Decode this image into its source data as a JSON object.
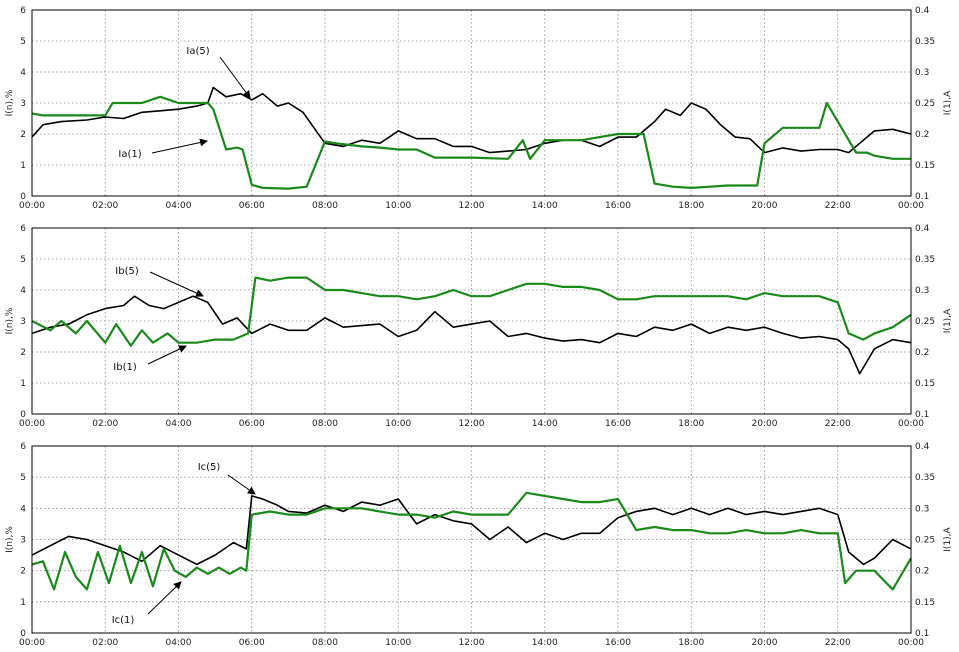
{
  "chart_data": [
    {
      "type": "line",
      "left_axis": {
        "label": "I(n),%",
        "ylim": [
          0,
          6
        ],
        "ticks": [
          "0",
          "1",
          "2",
          "3",
          "4",
          "5",
          "6"
        ]
      },
      "right_axis": {
        "label": "I(1),A",
        "ylim": [
          0.1,
          0.4
        ],
        "ticks": [
          "0.1",
          "0.15",
          "0.2",
          "0.25",
          "0.3",
          "0.35",
          "0.4"
        ]
      },
      "x_ticks": [
        "00:00",
        "02:00",
        "04:00",
        "06:00",
        "08:00",
        "10:00",
        "12:00",
        "14:00",
        "16:00",
        "18:00",
        "20:00",
        "22:00",
        "00:00"
      ],
      "grid": true,
      "annotations": [
        "Ia(5)",
        "Ia(1)"
      ],
      "series": [
        {
          "name": "Ia(5)",
          "color": "#000000",
          "axis": "left",
          "x": [
            0,
            0.3,
            0.8,
            1.5,
            2,
            2.5,
            3,
            3.5,
            4,
            4.5,
            4.8,
            4.95,
            5.3,
            5.7,
            6,
            6.3,
            6.7,
            7,
            7.4,
            7.7,
            8,
            8.5,
            9,
            9.5,
            10,
            10.5,
            11,
            11.5,
            12,
            12.5,
            13,
            13.5,
            14,
            14.5,
            15,
            15.5,
            16,
            16.5,
            17,
            17.3,
            17.7,
            18,
            18.4,
            18.8,
            19.2,
            19.6,
            20,
            20.5,
            21,
            21.5,
            22,
            22.3,
            22.6,
            23,
            23.5,
            24
          ],
          "y": [
            1.9,
            2.3,
            2.4,
            2.45,
            2.55,
            2.5,
            2.7,
            2.75,
            2.8,
            2.9,
            3.0,
            3.5,
            3.2,
            3.3,
            3.1,
            3.3,
            2.9,
            3.0,
            2.7,
            2.2,
            1.7,
            1.6,
            1.8,
            1.7,
            2.1,
            1.85,
            1.85,
            1.6,
            1.6,
            1.4,
            1.45,
            1.5,
            1.7,
            1.8,
            1.8,
            1.6,
            1.9,
            1.9,
            2.4,
            2.8,
            2.6,
            3.0,
            2.8,
            2.3,
            1.9,
            1.85,
            1.4,
            1.55,
            1.45,
            1.5,
            1.5,
            1.4,
            1.7,
            2.1,
            2.15,
            2.0
          ]
        },
        {
          "name": "Ia(1)",
          "color": "#1a8a1a",
          "axis": "right",
          "x": [
            0,
            0.3,
            1,
            2,
            2.2,
            3,
            3.5,
            4,
            4.8,
            4.95,
            5.3,
            5.6,
            5.75,
            6,
            6.3,
            7,
            7.5,
            8,
            8.3,
            9,
            9.5,
            10,
            10.5,
            11,
            12,
            13,
            13.4,
            13.6,
            14,
            15,
            16,
            16.3,
            16.7,
            17,
            17.5,
            18,
            18.5,
            19,
            19.5,
            19.8,
            20,
            20.5,
            21,
            21.5,
            21.7,
            22,
            22.5,
            22.8,
            23,
            23.5,
            24
          ],
          "y": [
            0.233,
            0.23,
            0.23,
            0.23,
            0.25,
            0.25,
            0.26,
            0.25,
            0.25,
            0.24,
            0.175,
            0.178,
            0.175,
            0.118,
            0.113,
            0.112,
            0.115,
            0.188,
            0.185,
            0.18,
            0.178,
            0.175,
            0.175,
            0.162,
            0.162,
            0.16,
            0.19,
            0.16,
            0.19,
            0.19,
            0.2,
            0.2,
            0.2,
            0.12,
            0.115,
            0.113,
            0.115,
            0.117,
            0.117,
            0.117,
            0.185,
            0.21,
            0.21,
            0.21,
            0.25,
            0.22,
            0.17,
            0.17,
            0.165,
            0.16,
            0.16
          ]
        }
      ]
    },
    {
      "type": "line",
      "left_axis": {
        "label": "I(n),%",
        "ylim": [
          0,
          6
        ],
        "ticks": [
          "0",
          "1",
          "2",
          "3",
          "4",
          "5",
          "6"
        ]
      },
      "right_axis": {
        "label": "I(1),A",
        "ylim": [
          0.1,
          0.4
        ],
        "ticks": [
          "0.1",
          "0.15",
          "0.2",
          "0.25",
          "0.3",
          "0.35",
          "0.4"
        ]
      },
      "x_ticks": [
        "00:00",
        "02:00",
        "04:00",
        "06:00",
        "08:00",
        "10:00",
        "12:00",
        "14:00",
        "16:00",
        "18:00",
        "20:00",
        "22:00",
        "00:00"
      ],
      "grid": true,
      "annotations": [
        "Ib(5)",
        "Ib(1)"
      ],
      "series": [
        {
          "name": "Ib(5)",
          "color": "#000000",
          "axis": "left",
          "x": [
            0,
            0.5,
            1,
            1.5,
            2,
            2.5,
            2.8,
            3.2,
            3.6,
            4,
            4.4,
            4.8,
            5.2,
            5.6,
            6,
            6.5,
            7,
            7.5,
            8,
            8.5,
            9,
            9.5,
            10,
            10.5,
            11,
            11.5,
            12,
            12.5,
            13,
            13.5,
            14,
            14.5,
            15,
            15.5,
            16,
            16.5,
            17,
            17.5,
            18,
            18.5,
            19,
            19.5,
            20,
            20.5,
            21,
            21.5,
            22,
            22.3,
            22.6,
            23,
            23.5,
            24
          ],
          "y": [
            2.6,
            2.8,
            2.9,
            3.2,
            3.4,
            3.5,
            3.8,
            3.5,
            3.4,
            3.6,
            3.8,
            3.6,
            2.9,
            3.1,
            2.6,
            2.9,
            2.7,
            2.7,
            3.1,
            2.8,
            2.85,
            2.9,
            2.5,
            2.7,
            3.3,
            2.8,
            2.9,
            3.0,
            2.5,
            2.6,
            2.45,
            2.35,
            2.4,
            2.3,
            2.6,
            2.5,
            2.8,
            2.7,
            2.9,
            2.6,
            2.8,
            2.7,
            2.8,
            2.6,
            2.45,
            2.5,
            2.4,
            2.1,
            1.3,
            2.1,
            2.4,
            2.3
          ]
        },
        {
          "name": "Ib(1)",
          "color": "#1a8a1a",
          "axis": "right",
          "x": [
            0,
            0.5,
            0.8,
            1.2,
            1.5,
            2,
            2.3,
            2.7,
            3,
            3.3,
            3.7,
            4,
            4.5,
            5,
            5.5,
            5.9,
            6.1,
            6.5,
            7,
            7.5,
            8,
            8.5,
            9,
            9.5,
            10,
            10.5,
            11,
            11.5,
            12,
            12.5,
            13,
            13.5,
            14,
            14.5,
            15,
            15.5,
            16,
            16.5,
            17,
            18,
            19,
            19.5,
            20,
            20.5,
            21,
            21.5,
            22,
            22.3,
            22.7,
            23,
            23.5,
            24
          ],
          "y": [
            0.25,
            0.235,
            0.25,
            0.23,
            0.25,
            0.215,
            0.245,
            0.21,
            0.235,
            0.215,
            0.23,
            0.215,
            0.215,
            0.22,
            0.22,
            0.23,
            0.32,
            0.315,
            0.32,
            0.32,
            0.3,
            0.3,
            0.295,
            0.29,
            0.29,
            0.285,
            0.29,
            0.3,
            0.29,
            0.29,
            0.3,
            0.31,
            0.31,
            0.305,
            0.305,
            0.3,
            0.285,
            0.285,
            0.29,
            0.29,
            0.29,
            0.285,
            0.295,
            0.29,
            0.29,
            0.29,
            0.28,
            0.23,
            0.22,
            0.23,
            0.24,
            0.26
          ]
        }
      ]
    },
    {
      "type": "line",
      "left_axis": {
        "label": "I(n),%",
        "ylim": [
          0,
          6
        ],
        "ticks": [
          "0",
          "1",
          "2",
          "3",
          "4",
          "5",
          "6"
        ]
      },
      "right_axis": {
        "label": "I(1),A",
        "ylim": [
          0.1,
          0.4
        ],
        "ticks": [
          "0.1",
          "0.15",
          "0.2",
          "0.25",
          "0.3",
          "0.35",
          "0.4"
        ]
      },
      "x_ticks": [
        "00:00",
        "02:00",
        "04:00",
        "06:00",
        "08:00",
        "10:00",
        "12:00",
        "14:00",
        "16:00",
        "18:00",
        "20:00",
        "22:00",
        "00:00"
      ],
      "grid": true,
      "annotations": [
        "Ic(5)",
        "Ic(1)"
      ],
      "series": [
        {
          "name": "Ic(5)",
          "color": "#000000",
          "axis": "left",
          "x": [
            0,
            0.5,
            1,
            1.5,
            2,
            2.5,
            3,
            3.5,
            4,
            4.5,
            5,
            5.5,
            5.85,
            6,
            6.3,
            6.7,
            7,
            7.5,
            8,
            8.5,
            9,
            9.5,
            10,
            10.5,
            11,
            11.5,
            12,
            12.5,
            13,
            13.5,
            14,
            14.5,
            15,
            15.5,
            16,
            16.5,
            17,
            17.5,
            18,
            18.5,
            19,
            19.5,
            20,
            20.5,
            21,
            21.5,
            22,
            22.3,
            22.7,
            23,
            23.5,
            24
          ],
          "y": [
            2.5,
            2.8,
            3.1,
            3.0,
            2.8,
            2.6,
            2.3,
            2.8,
            2.5,
            2.2,
            2.5,
            2.9,
            2.7,
            4.4,
            4.3,
            4.1,
            3.9,
            3.85,
            4.1,
            3.9,
            4.2,
            4.1,
            4.3,
            3.5,
            3.8,
            3.6,
            3.5,
            3.0,
            3.4,
            2.9,
            3.2,
            3.0,
            3.2,
            3.2,
            3.7,
            3.9,
            4.0,
            3.8,
            4.0,
            3.8,
            4.0,
            3.8,
            3.9,
            3.8,
            3.9,
            4.0,
            3.8,
            2.6,
            2.2,
            2.4,
            3.0,
            2.7
          ]
        },
        {
          "name": "Ic(1)",
          "color": "#1a8a1a",
          "axis": "right",
          "x": [
            0,
            0.3,
            0.6,
            0.9,
            1.2,
            1.5,
            1.8,
            2.1,
            2.4,
            2.7,
            3,
            3.3,
            3.6,
            3.9,
            4.2,
            4.5,
            4.8,
            5.1,
            5.4,
            5.7,
            5.85,
            6,
            6.5,
            7,
            7.5,
            8,
            8.5,
            9,
            9.5,
            10,
            10.5,
            11,
            11.5,
            12,
            12.5,
            13,
            13.5,
            14,
            14.5,
            15,
            15.5,
            16,
            16.5,
            17,
            17.5,
            18,
            18.5,
            19,
            19.5,
            20,
            20.5,
            21,
            21.5,
            22,
            22.2,
            22.5,
            23,
            23.5,
            24
          ],
          "y": [
            0.21,
            0.215,
            0.17,
            0.23,
            0.19,
            0.17,
            0.23,
            0.18,
            0.24,
            0.18,
            0.23,
            0.175,
            0.235,
            0.2,
            0.19,
            0.205,
            0.195,
            0.205,
            0.195,
            0.205,
            0.2,
            0.29,
            0.295,
            0.29,
            0.29,
            0.3,
            0.3,
            0.3,
            0.295,
            0.29,
            0.29,
            0.285,
            0.295,
            0.29,
            0.29,
            0.29,
            0.325,
            0.32,
            0.315,
            0.31,
            0.31,
            0.315,
            0.265,
            0.27,
            0.265,
            0.265,
            0.26,
            0.26,
            0.265,
            0.26,
            0.26,
            0.265,
            0.26,
            0.26,
            0.18,
            0.2,
            0.2,
            0.17,
            0.22
          ]
        }
      ]
    }
  ]
}
